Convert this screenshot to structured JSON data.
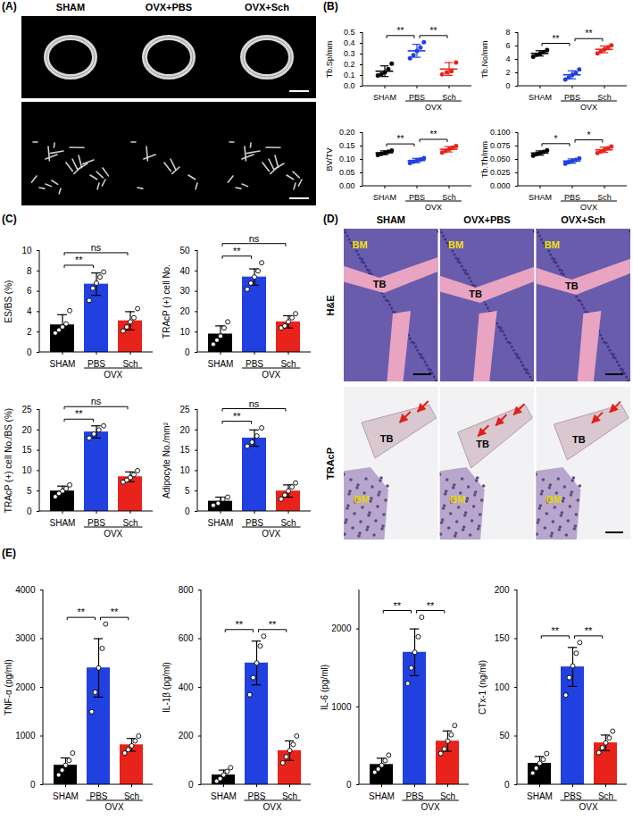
{
  "image_panels": [
    {
      "panel": "(A)",
      "columns": [
        "SHAM",
        "OVX+PBS",
        "OVX+Sch"
      ]
    },
    {
      "panel": "(D)",
      "columns": [
        "SHAM",
        "OVX+PBS",
        "OVX+Sch"
      ],
      "rows": [
        "H&E",
        "TRAcP"
      ],
      "region_labels": {
        "bone": "TB",
        "marrow": "BM"
      }
    }
  ],
  "chart_data": [
    {
      "panel": "(B)",
      "type": "scatter",
      "ylabel": "Tb.Sp/mm",
      "categories": [
        "SHAM",
        "PBS",
        "Sch"
      ],
      "group": {
        "label": "OVX",
        "categories": [
          "PBS",
          "Sch"
        ]
      },
      "colors": [
        "#000000",
        "#2040e0",
        "#e8231c"
      ],
      "values": [
        0.14,
        0.33,
        0.16
      ],
      "errors": [
        0.05,
        0.06,
        0.06
      ],
      "points": [
        [
          0.1,
          0.11,
          0.13,
          0.16,
          0.21
        ],
        [
          0.26,
          0.29,
          0.33,
          0.36,
          0.41
        ],
        [
          0.11,
          0.13,
          0.14,
          0.22
        ]
      ],
      "ylim": [
        0,
        0.5
      ],
      "yticks": [
        {
          "value": 0,
          "label": "0.0"
        },
        0.1,
        0.2,
        0.3,
        0.4,
        0.5
      ],
      "comparisons": [
        {
          "pair": [
            "SHAM",
            "PBS"
          ],
          "label": "**"
        },
        {
          "pair": [
            "PBS",
            "Sch"
          ],
          "label": "**"
        }
      ]
    },
    {
      "panel": "(B)",
      "type": "scatter",
      "ylabel": "Tb.No/mm",
      "categories": [
        "SHAM",
        "PBS",
        "Sch"
      ],
      "group": {
        "label": "OVX",
        "categories": [
          "PBS",
          "Sch"
        ]
      },
      "colors": [
        "#000000",
        "#2040e0",
        "#e8231c"
      ],
      "values": [
        4.9,
        1.7,
        5.5
      ],
      "errors": [
        0.4,
        0.6,
        0.5
      ],
      "points": [
        [
          4.4,
          4.7,
          4.9,
          5.1,
          5.4
        ],
        [
          1.0,
          1.3,
          1.7,
          2.0,
          2.5
        ],
        [
          4.9,
          5.2,
          5.5,
          5.8,
          6.1
        ]
      ],
      "ylim": [
        0,
        8
      ],
      "yticks": [
        0,
        2,
        4,
        6,
        8
      ],
      "comparisons": [
        {
          "pair": [
            "SHAM",
            "PBS"
          ],
          "label": "**"
        },
        {
          "pair": [
            "PBS",
            "Sch"
          ],
          "label": "**"
        }
      ]
    },
    {
      "panel": "(B)",
      "type": "scatter",
      "ylabel": "BV/TV",
      "categories": [
        "SHAM",
        "PBS",
        "Sch"
      ],
      "group": {
        "label": "OVX",
        "categories": [
          "PBS",
          "Sch"
        ]
      },
      "colors": [
        "#000000",
        "#2040e0",
        "#e8231c"
      ],
      "values": [
        0.125,
        0.096,
        0.138
      ],
      "errors": [
        0.007,
        0.008,
        0.01
      ],
      "points": [
        [
          0.117,
          0.121,
          0.125,
          0.129,
          0.133
        ],
        [
          0.087,
          0.092,
          0.096,
          0.1,
          0.105
        ],
        [
          0.126,
          0.132,
          0.138,
          0.144,
          0.15
        ]
      ],
      "ylim": [
        0,
        0.2
      ],
      "yticks": [
        {
          "value": 0,
          "label": "0.00"
        },
        {
          "value": 0.05,
          "label": "0.05"
        },
        {
          "value": 0.1,
          "label": "0.10"
        },
        {
          "value": 0.15,
          "label": "0.15"
        },
        {
          "value": 0.2,
          "label": "0.20"
        }
      ],
      "comparisons": [
        {
          "pair": [
            "SHAM",
            "PBS"
          ],
          "label": "**"
        },
        {
          "pair": [
            "PBS",
            "Sch"
          ],
          "label": "**"
        }
      ]
    },
    {
      "panel": "(B)",
      "type": "scatter",
      "ylabel": "Tb.Th/mm",
      "categories": [
        "SHAM",
        "PBS",
        "Sch"
      ],
      "group": {
        "label": "OVX",
        "categories": [
          "PBS",
          "Sch"
        ]
      },
      "colors": [
        "#000000",
        "#2040e0",
        "#e8231c"
      ],
      "values": [
        0.062,
        0.047,
        0.068
      ],
      "errors": [
        0.004,
        0.004,
        0.005
      ],
      "points": [
        [
          0.057,
          0.06,
          0.062,
          0.064,
          0.067
        ],
        [
          0.042,
          0.045,
          0.047,
          0.049,
          0.052
        ],
        [
          0.062,
          0.065,
          0.068,
          0.071,
          0.074
        ]
      ],
      "ylim": [
        0,
        0.1
      ],
      "yticks": [
        {
          "value": 0,
          "label": "0.000"
        },
        {
          "value": 0.025,
          "label": "0.025"
        },
        {
          "value": 0.05,
          "label": "0.050"
        },
        {
          "value": 0.075,
          "label": "0.075"
        },
        {
          "value": 0.1,
          "label": "0.100"
        }
      ],
      "comparisons": [
        {
          "pair": [
            "SHAM",
            "PBS"
          ],
          "label": "*"
        },
        {
          "pair": [
            "PBS",
            "Sch"
          ],
          "label": "*"
        }
      ]
    },
    {
      "panel": "(C)",
      "type": "bar",
      "ylabel": "ES/BS (%)",
      "categories": [
        "SHAM",
        "PBS",
        "Sch"
      ],
      "group": {
        "label": "OVX",
        "categories": [
          "PBS",
          "Sch"
        ]
      },
      "colors": [
        "#000000",
        "#2040e0",
        "#e8231c"
      ],
      "values": [
        2.7,
        6.7,
        3.1
      ],
      "errors": [
        1.0,
        1.1,
        0.9
      ],
      "points": [
        [
          1.9,
          2.2,
          2.5,
          2.8,
          4.1
        ],
        [
          5.1,
          6.3,
          6.8,
          7.4,
          7.9
        ],
        [
          2.1,
          2.5,
          3.0,
          3.4,
          4.3
        ]
      ],
      "ylim": [
        0,
        10
      ],
      "yticks": [
        0,
        2,
        4,
        6,
        8,
        10
      ],
      "comparisons": [
        {
          "pair": [
            "SHAM",
            "PBS"
          ],
          "label": "**"
        },
        {
          "pair": [
            "SHAM",
            "Sch"
          ],
          "label": "ns"
        }
      ]
    },
    {
      "panel": "(C)",
      "type": "bar",
      "ylabel": "TRAcP (+) cell No.",
      "categories": [
        "SHAM",
        "PBS",
        "Sch"
      ],
      "group": {
        "label": "OVX",
        "categories": [
          "PBS",
          "Sch"
        ]
      },
      "colors": [
        "#000000",
        "#2040e0",
        "#e8231c"
      ],
      "values": [
        9,
        37,
        15
      ],
      "errors": [
        4,
        4,
        3
      ],
      "points": [
        [
          4,
          6,
          8,
          12,
          15
        ],
        [
          31,
          34,
          37,
          40,
          44
        ],
        [
          12,
          13,
          15,
          17,
          19
        ]
      ],
      "ylim": [
        0,
        50
      ],
      "yticks": [
        0,
        10,
        20,
        30,
        40,
        50
      ],
      "comparisons": [
        {
          "pair": [
            "SHAM",
            "PBS"
          ],
          "label": "**"
        },
        {
          "pair": [
            "SHAM",
            "Sch"
          ],
          "label": "ns"
        }
      ]
    },
    {
      "panel": "(C)",
      "type": "bar",
      "ylabel": "TRAcP (+) cell No./BS (%)",
      "categories": [
        "SHAM",
        "PBS",
        "Sch"
      ],
      "group": {
        "label": "OVX",
        "categories": [
          "PBS",
          "Sch"
        ]
      },
      "colors": [
        "#000000",
        "#2040e0",
        "#e8231c"
      ],
      "values": [
        5,
        19.5,
        8.5
      ],
      "errors": [
        1.2,
        1.5,
        1.2
      ],
      "points": [
        [
          3.6,
          4.4,
          5,
          5.6,
          6.5
        ],
        [
          18,
          19,
          20,
          21
        ],
        [
          7.2,
          7.7,
          8.3,
          9,
          10
        ]
      ],
      "ylim": [
        0,
        25
      ],
      "yticks": [
        0,
        5,
        10,
        15,
        20,
        25
      ],
      "comparisons": [
        {
          "pair": [
            "SHAM",
            "PBS"
          ],
          "label": "**"
        },
        {
          "pair": [
            "SHAM",
            "Sch"
          ],
          "label": "ns"
        }
      ]
    },
    {
      "panel": "(C)",
      "type": "bar",
      "ylabel": "Adipocyte No./mm²",
      "categories": [
        "SHAM",
        "PBS",
        "Sch"
      ],
      "group": {
        "label": "OVX",
        "categories": [
          "PBS",
          "Sch"
        ]
      },
      "colors": [
        "#000000",
        "#2040e0",
        "#e8231c"
      ],
      "values": [
        2.5,
        18,
        5
      ],
      "errors": [
        1,
        2,
        1.5
      ],
      "points": [
        [
          1.5,
          2,
          3,
          3.5
        ],
        [
          16,
          17,
          18.5,
          20.5
        ],
        [
          3,
          4,
          5,
          6,
          7
        ]
      ],
      "ylim": [
        0,
        25
      ],
      "yticks": [
        0,
        5,
        10,
        15,
        20,
        25
      ],
      "comparisons": [
        {
          "pair": [
            "SHAM",
            "PBS"
          ],
          "label": "**"
        },
        {
          "pair": [
            "SHAM",
            "Sch"
          ],
          "label": "ns"
        }
      ]
    },
    {
      "panel": "(E)",
      "type": "bar",
      "ylabel": "TNF-α (pg/ml)",
      "categories": [
        "SHAM",
        "PBS",
        "Sch"
      ],
      "group": {
        "label": "OVX",
        "categories": [
          "PBS",
          "Sch"
        ]
      },
      "colors": [
        "#000000",
        "#2040e0",
        "#e8231c"
      ],
      "values": [
        400,
        2400,
        820
      ],
      "errors": [
        150,
        600,
        130
      ],
      "points": [
        [
          200,
          300,
          400,
          500,
          650
        ],
        [
          1500,
          1900,
          2400,
          2800,
          3300
        ],
        [
          650,
          720,
          800,
          900,
          1000
        ]
      ],
      "ylim": [
        0,
        4000
      ],
      "yticks": [
        0,
        1000,
        2000,
        3000,
        4000
      ],
      "comparisons": [
        {
          "pair": [
            "SHAM",
            "PBS"
          ],
          "label": "**"
        },
        {
          "pair": [
            "PBS",
            "Sch"
          ],
          "label": "**"
        }
      ]
    },
    {
      "panel": "(E)",
      "type": "bar",
      "ylabel": "IL-1β (pg/ml)",
      "categories": [
        "SHAM",
        "PBS",
        "Sch"
      ],
      "group": {
        "label": "OVX",
        "categories": [
          "PBS",
          "Sch"
        ]
      },
      "colors": [
        "#000000",
        "#2040e0",
        "#e8231c"
      ],
      "values": [
        40,
        500,
        140
      ],
      "errors": [
        20,
        90,
        40
      ],
      "points": [
        [
          15,
          25,
          40,
          55,
          70
        ],
        [
          370,
          440,
          500,
          570,
          610
        ],
        [
          90,
          115,
          140,
          165,
          200
        ]
      ],
      "ylim": [
        0,
        800
      ],
      "yticks": [
        0,
        200,
        400,
        600,
        800
      ],
      "comparisons": [
        {
          "pair": [
            "SHAM",
            "PBS"
          ],
          "label": "**"
        },
        {
          "pair": [
            "PBS",
            "Sch"
          ],
          "label": "**"
        }
      ]
    },
    {
      "panel": "(E)",
      "type": "bar",
      "ylabel": "IL-6 (pg/ml)",
      "categories": [
        "SHAM",
        "PBS",
        "Sch"
      ],
      "group": {
        "label": "OVX",
        "categories": [
          "PBS",
          "Sch"
        ]
      },
      "colors": [
        "#000000",
        "#2040e0",
        "#e8231c"
      ],
      "values": [
        260,
        1700,
        560
      ],
      "errors": [
        80,
        300,
        130
      ],
      "points": [
        [
          160,
          200,
          250,
          310,
          380
        ],
        [
          1300,
          1500,
          1700,
          1900,
          2150
        ],
        [
          400,
          460,
          560,
          640,
          760
        ]
      ],
      "ylim": [
        0,
        2500
      ],
      "yticks": [
        0,
        1000,
        2000
      ],
      "comparisons": [
        {
          "pair": [
            "SHAM",
            "PBS"
          ],
          "label": "**"
        },
        {
          "pair": [
            "PBS",
            "Sch"
          ],
          "label": "**"
        }
      ]
    },
    {
      "panel": "(E)",
      "type": "bar",
      "ylabel": "CTx-1 (ng/ml)",
      "categories": [
        "SHAM",
        "PBS",
        "Sch"
      ],
      "group": {
        "label": "OVX",
        "categories": [
          "PBS",
          "Sch"
        ]
      },
      "colors": [
        "#000000",
        "#2040e0",
        "#e8231c"
      ],
      "values": [
        22,
        121,
        43
      ],
      "errors": [
        7,
        20,
        8
      ],
      "points": [
        [
          12,
          17,
          22,
          26,
          32
        ],
        [
          92,
          110,
          122,
          135,
          146
        ],
        [
          33,
          38,
          43,
          48,
          55
        ]
      ],
      "ylim": [
        0,
        200
      ],
      "yticks": [
        0,
        50,
        100,
        150,
        200
      ],
      "comparisons": [
        {
          "pair": [
            "SHAM",
            "PBS"
          ],
          "label": "**"
        },
        {
          "pair": [
            "PBS",
            "Sch"
          ],
          "label": "**"
        }
      ]
    }
  ]
}
